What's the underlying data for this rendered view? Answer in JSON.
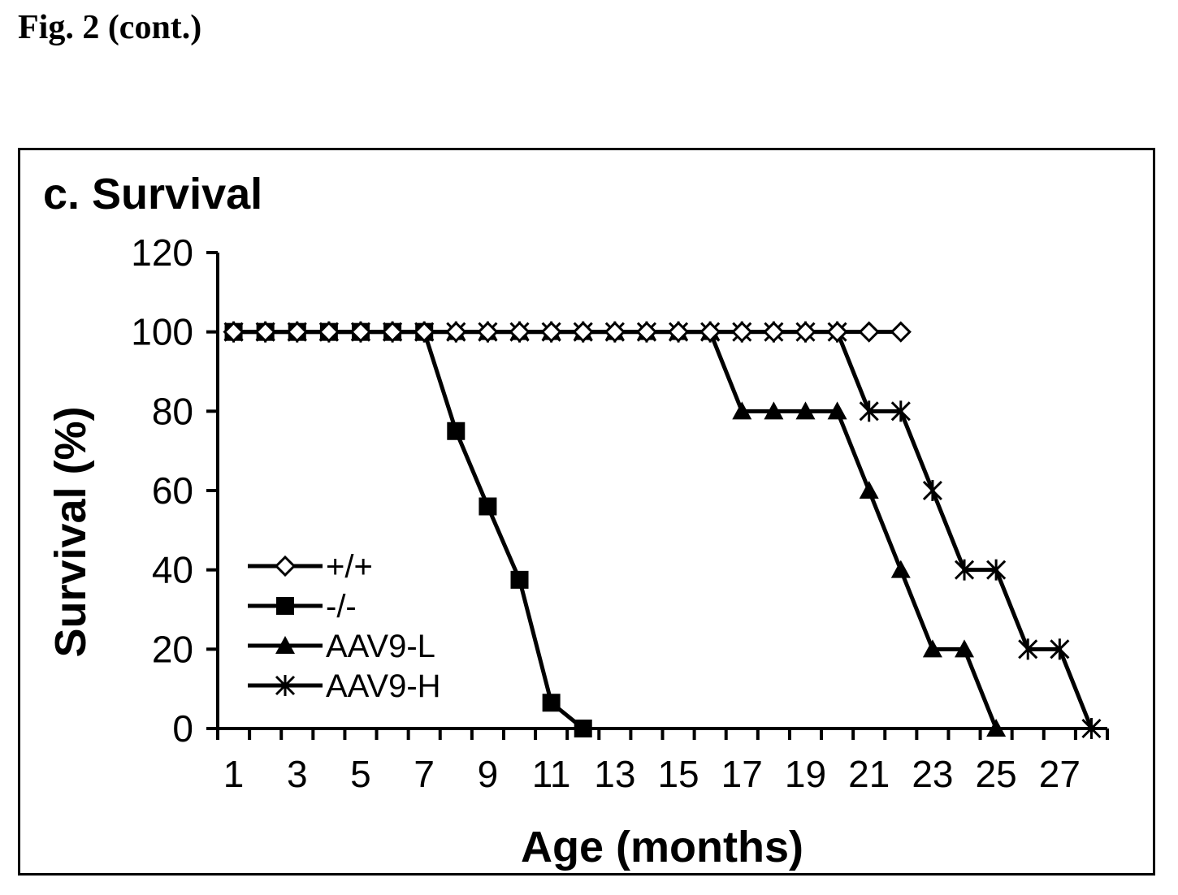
{
  "figure_label": "Fig. 2 (cont.)",
  "chart_data": {
    "type": "line",
    "title": "c. Survival",
    "xlabel": "Age (months)",
    "ylabel": "Survival (%)",
    "xlim": [
      0.5,
      28.5
    ],
    "ylim": [
      0,
      120
    ],
    "yticks": [
      0,
      20,
      40,
      60,
      80,
      100,
      120
    ],
    "xtick_labels": [
      "1",
      "3",
      "5",
      "7",
      "9",
      "11",
      "13",
      "15",
      "17",
      "19",
      "21",
      "23",
      "25",
      "27"
    ],
    "xtick_values": [
      1,
      3,
      5,
      7,
      9,
      11,
      13,
      15,
      17,
      19,
      21,
      23,
      25,
      27
    ],
    "grid": false,
    "legend_position": "lower-left",
    "series": [
      {
        "name": "+/+",
        "marker": "diamond-open",
        "color": "#000000",
        "x": [
          1,
          2,
          3,
          4,
          5,
          6,
          7,
          8,
          9,
          10,
          11,
          12,
          13,
          14,
          15,
          16,
          17,
          18,
          19,
          20,
          21,
          22
        ],
        "y": [
          100,
          100,
          100,
          100,
          100,
          100,
          100,
          100,
          100,
          100,
          100,
          100,
          100,
          100,
          100,
          100,
          100,
          100,
          100,
          100,
          100,
          100
        ]
      },
      {
        "name": "-/-",
        "marker": "square",
        "color": "#000000",
        "x": [
          1,
          2,
          3,
          4,
          5,
          6,
          7,
          8,
          9,
          10,
          11,
          12
        ],
        "y": [
          100,
          100,
          100,
          100,
          100,
          100,
          100,
          75,
          56,
          37.5,
          6.5,
          0
        ]
      },
      {
        "name": "AAV9-L",
        "marker": "triangle",
        "color": "#000000",
        "x": [
          1,
          2,
          3,
          4,
          5,
          6,
          7,
          8,
          9,
          10,
          11,
          12,
          13,
          14,
          15,
          16,
          17,
          18,
          19,
          20,
          21,
          22,
          23,
          24,
          25
        ],
        "y": [
          100,
          100,
          100,
          100,
          100,
          100,
          100,
          100,
          100,
          100,
          100,
          100,
          100,
          100,
          100,
          100,
          80,
          80,
          80,
          80,
          60,
          40,
          20,
          20,
          0
        ]
      },
      {
        "name": "AAV9-H",
        "marker": "asterisk",
        "color": "#000000",
        "x": [
          1,
          2,
          3,
          4,
          5,
          6,
          7,
          8,
          9,
          10,
          11,
          12,
          13,
          14,
          15,
          16,
          17,
          18,
          19,
          20,
          21,
          22,
          23,
          24,
          25,
          26,
          27,
          28
        ],
        "y": [
          100,
          100,
          100,
          100,
          100,
          100,
          100,
          100,
          100,
          100,
          100,
          100,
          100,
          100,
          100,
          100,
          100,
          100,
          100,
          100,
          80,
          80,
          60,
          40,
          40,
          20,
          20,
          0
        ]
      }
    ]
  }
}
